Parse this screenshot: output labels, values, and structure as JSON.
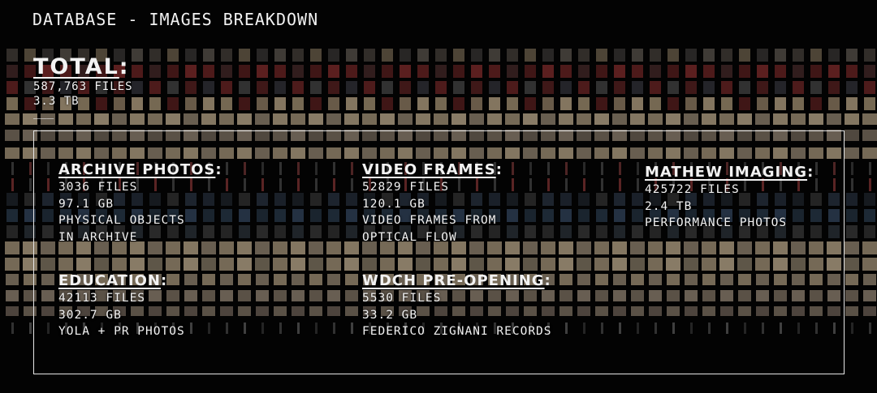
{
  "title": "DATABASE - IMAGES BREAKDOWN",
  "total": {
    "heading": "TOTAL",
    "files": "587,763 FILES",
    "size": "3.3 TB",
    "separator": "___"
  },
  "categories": [
    {
      "name": "ARCHIVE PHOTOS",
      "files": "3036 FILES",
      "size": "97.1 GB",
      "desc1": "PHYSICAL OBJECTS",
      "desc2": "IN ARCHIVE"
    },
    {
      "name": "VIDEO FRAMES",
      "files": "52829 FILES",
      "size": "120.1 GB",
      "desc1": "VIDEO FRAMES FROM",
      "desc2": "OPTICAL FLOW"
    },
    {
      "name": "MATHEW IMAGING",
      "files": "425722 FILES",
      "size": "2.4 TB",
      "desc1": "PERFORMANCE PHOTOS",
      "desc2": ""
    },
    {
      "name": "EDUCATION",
      "files": "42113 FILES",
      "size": "302.7 GB",
      "desc1": "YOLA + PR PHOTOS",
      "desc2": ""
    },
    {
      "name": "WDCH PRE-OPENING",
      "files": "5530 FILES",
      "size": "33.2 GB",
      "desc1": "FEDERICO ZIGNANI RECORDS",
      "desc2": ""
    }
  ],
  "colors": {
    "background": "#030303",
    "text": "#f2f2f2",
    "frame": "#e6e6e6"
  }
}
